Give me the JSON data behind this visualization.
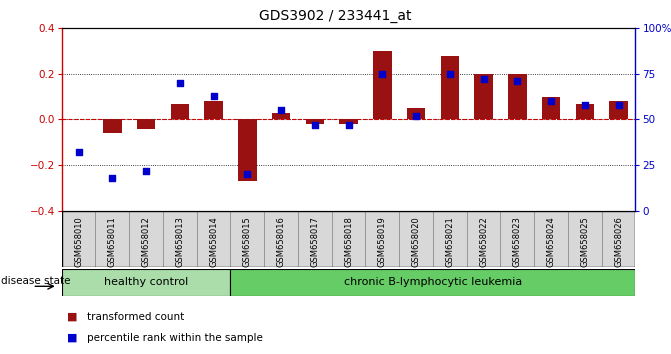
{
  "title": "GDS3902 / 233441_at",
  "samples": [
    "GSM658010",
    "GSM658011",
    "GSM658012",
    "GSM658013",
    "GSM658014",
    "GSM658015",
    "GSM658016",
    "GSM658017",
    "GSM658018",
    "GSM658019",
    "GSM658020",
    "GSM658021",
    "GSM658022",
    "GSM658023",
    "GSM658024",
    "GSM658025",
    "GSM658026"
  ],
  "transformed_count": [
    0.0,
    -0.06,
    -0.04,
    0.07,
    0.08,
    -0.27,
    0.03,
    -0.02,
    -0.02,
    0.3,
    0.05,
    0.28,
    0.2,
    0.2,
    0.1,
    0.07,
    0.08
  ],
  "percentile_rank": [
    32,
    18,
    22,
    70,
    63,
    20,
    55,
    47,
    47,
    75,
    52,
    75,
    72,
    71,
    60,
    58,
    58
  ],
  "group_labels": [
    "healthy control",
    "chronic B-lymphocytic leukemia"
  ],
  "group_boundary": 5,
  "group_colors": [
    "#aaddaa",
    "#66cc66"
  ],
  "bar_color": "#991111",
  "dot_color": "#0000CC",
  "ylim": [
    -0.4,
    0.4
  ],
  "yticks_left": [
    -0.4,
    -0.2,
    0.0,
    0.2,
    0.4
  ],
  "right_ytick_labels": [
    "0",
    "25",
    "50",
    "75",
    "100%"
  ],
  "right_ytick_values": [
    0,
    25,
    50,
    75,
    100
  ],
  "legend_red": "transformed count",
  "legend_blue": "percentile rank within the sample",
  "bar_width": 0.55,
  "dot_size": 18
}
